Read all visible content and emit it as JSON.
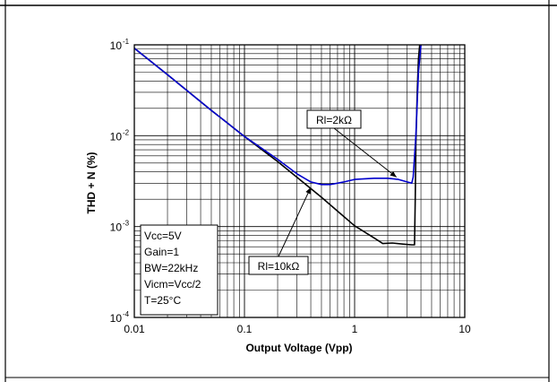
{
  "chart_data": {
    "type": "line",
    "title": "",
    "xlabel": "Output Voltage (Vpp)",
    "ylabel": "THD + N (%)",
    "x_scale": "log",
    "y_scale": "log",
    "xlim": [
      0.01,
      10
    ],
    "ylim": [
      0.0001,
      0.1
    ],
    "grid": true,
    "x_ticks": [
      {
        "value": 0.01,
        "label": "0.01"
      },
      {
        "value": 0.1,
        "label": "0.1"
      },
      {
        "value": 1,
        "label": "1"
      },
      {
        "value": 10,
        "label": "10"
      }
    ],
    "y_ticks": [
      {
        "value": 0.0001,
        "base": "10",
        "exp": "-4"
      },
      {
        "value": 0.001,
        "base": "10",
        "exp": "-3"
      },
      {
        "value": 0.01,
        "base": "10",
        "exp": "-2"
      },
      {
        "value": 0.1,
        "base": "10",
        "exp": "-1"
      }
    ],
    "series": [
      {
        "name": "Rl=10kΩ",
        "color": "#000000",
        "x": [
          0.01,
          0.02,
          0.05,
          0.1,
          0.2,
          0.5,
          1.0,
          1.5,
          1.8,
          2.2,
          2.8,
          3.3,
          3.5,
          3.55,
          3.6,
          3.7,
          3.8,
          3.9
        ],
        "y": [
          0.092,
          0.047,
          0.019,
          0.0098,
          0.0052,
          0.0021,
          0.00102,
          0.00075,
          0.00065,
          0.00066,
          0.00064,
          0.00063,
          0.00063,
          0.002,
          0.008,
          0.03,
          0.07,
          0.1
        ]
      },
      {
        "name": "Rl=2kΩ",
        "color": "#0000cc",
        "x": [
          0.01,
          0.02,
          0.05,
          0.1,
          0.2,
          0.3,
          0.4,
          0.5,
          0.6,
          0.8,
          1.0,
          1.5,
          2.0,
          2.5,
          3.0,
          3.3,
          3.4,
          3.6,
          3.8,
          4.0
        ],
        "y": [
          0.092,
          0.047,
          0.019,
          0.0098,
          0.0055,
          0.0038,
          0.0031,
          0.0029,
          0.0029,
          0.0031,
          0.0033,
          0.0034,
          0.0034,
          0.0033,
          0.0031,
          0.003,
          0.0035,
          0.01,
          0.05,
          0.1
        ]
      }
    ],
    "annotations": [
      {
        "text": "Rl=2kΩ",
        "target_series": "Rl=2kΩ"
      },
      {
        "text": "Rl=10kΩ",
        "target_series": "Rl=10kΩ"
      }
    ],
    "conditions": [
      "Vcc=5V",
      "Gain=1",
      "BW=22kHz",
      "Vicm=Vcc/2",
      "T=25°C"
    ]
  }
}
